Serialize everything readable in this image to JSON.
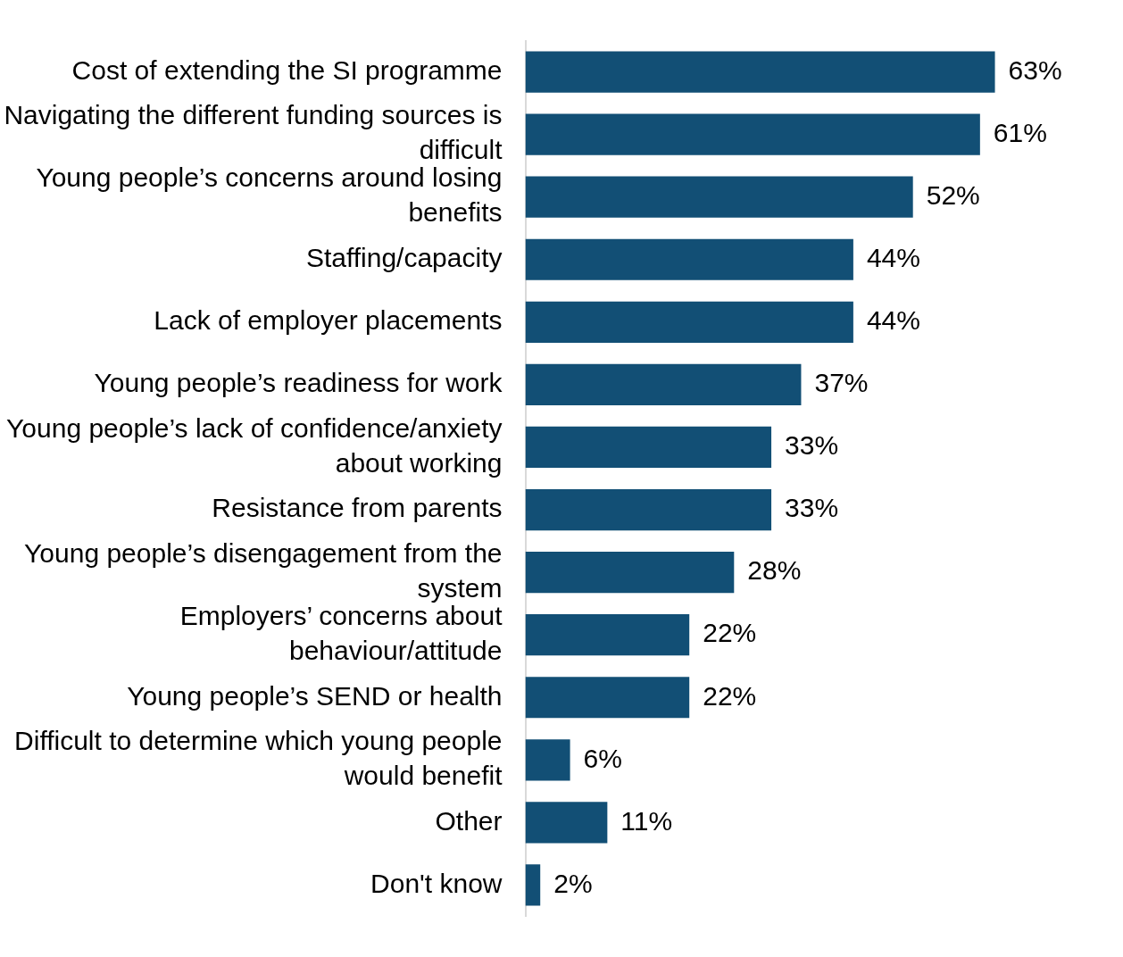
{
  "chart_data": {
    "type": "bar",
    "orientation": "horizontal",
    "categories": [
      "Cost of extending the SI programme",
      "Navigating the different funding sources is difficult",
      "Young people’s concerns around losing benefits",
      "Staffing/capacity",
      "Lack of employer placements",
      "Young people’s readiness for work",
      "Young people’s lack of confidence/anxiety about working",
      "Resistance from parents",
      "Young people’s disengagement from the system",
      "Employers’ concerns about behaviour/attitude",
      "Young people’s SEND or health",
      "Difficult to determine which young people would benefit",
      "Other",
      "Don't know"
    ],
    "values": [
      63,
      61,
      52,
      44,
      44,
      37,
      33,
      33,
      28,
      22,
      22,
      6,
      11,
      2
    ],
    "value_labels": [
      "63%",
      "61%",
      "52%",
      "44%",
      "44%",
      "37%",
      "33%",
      "33%",
      "28%",
      "22%",
      "22%",
      "6%",
      "11%",
      "2%"
    ],
    "color": "#124f75",
    "tick_labels": "y"
  }
}
